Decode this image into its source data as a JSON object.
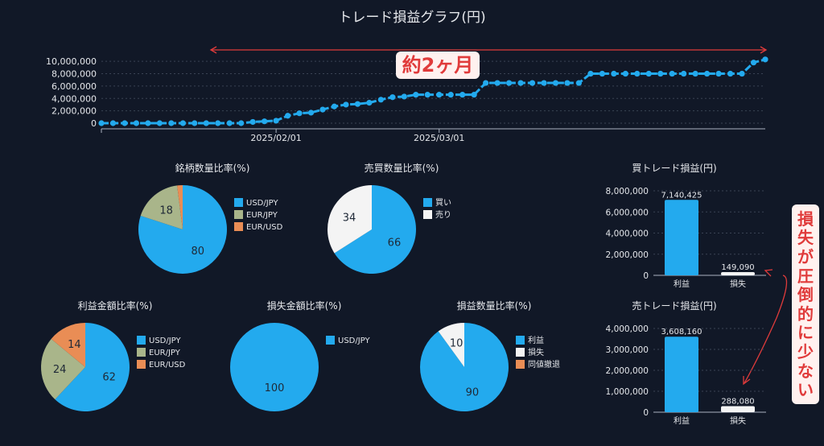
{
  "title": "トレード損益グラフ(円)",
  "colors": {
    "blue": "#23aaee",
    "olive": "#a9b58a",
    "orange": "#e98d55",
    "white": "#f4f4f4",
    "red": "#e03b3b",
    "grid": "#3a4354"
  },
  "annotations": {
    "period_label": "約2ヶ月",
    "loss_note_chars": [
      "損",
      "失",
      "が",
      "圧",
      "倒",
      "的",
      "に",
      "少",
      "な",
      "い"
    ]
  },
  "chart_data": [
    {
      "id": "line",
      "type": "line",
      "title": "トレード損益グラフ(円)",
      "y_ticks": [
        "10,000,000",
        "8,000,000",
        "6,000,000",
        "4,000,000",
        "2,000,000",
        "0"
      ],
      "y_tick_values": [
        10000000,
        8000000,
        6000000,
        4000000,
        2000000,
        0
      ],
      "x_ticks": [
        "2025/02/01",
        "2025/03/01"
      ],
      "x_tick_index": [
        15,
        29
      ],
      "ylim": [
        0,
        10800000
      ],
      "values": [
        0,
        0,
        0,
        0,
        0,
        0,
        0,
        0,
        0,
        0,
        0,
        0,
        0,
        200000,
        300000,
        400000,
        1200000,
        1600000,
        1700000,
        2200000,
        2700000,
        3000000,
        3100000,
        3300000,
        3800000,
        4200000,
        4300000,
        4600000,
        4600000,
        4600000,
        4600000,
        4600000,
        4600000,
        6500000,
        6500000,
        6500000,
        6500000,
        6500000,
        6500000,
        6500000,
        6500000,
        6500000,
        8000000,
        8000000,
        8000000,
        8000000,
        8000000,
        8000000,
        8000000,
        8000000,
        8000000,
        8000000,
        8000000,
        8000000,
        8000000,
        8000000,
        9800000,
        10300000
      ]
    },
    {
      "id": "pie-brand",
      "type": "pie",
      "title": "銘柄数量比率(%)",
      "labels": [
        "USD/JPY",
        "EUR/JPY",
        "EUR/USD"
      ],
      "values": [
        80,
        18,
        2
      ],
      "data_labels": [
        "80",
        "18",
        ""
      ],
      "colors": [
        "#23aaee",
        "#a9b58a",
        "#e98d55"
      ]
    },
    {
      "id": "pie-side",
      "type": "pie",
      "title": "売買数量比率(%)",
      "labels": [
        "買い",
        "売り"
      ],
      "values": [
        66,
        34
      ],
      "data_labels": [
        "66",
        "34"
      ],
      "colors": [
        "#23aaee",
        "#f4f4f4"
      ]
    },
    {
      "id": "pie-profit",
      "type": "pie",
      "title": "利益金額比率(%)",
      "labels": [
        "USD/JPY",
        "EUR/JPY",
        "EUR/USD"
      ],
      "values": [
        62,
        24,
        14
      ],
      "data_labels": [
        "62",
        "24",
        "14"
      ],
      "colors": [
        "#23aaee",
        "#a9b58a",
        "#e98d55"
      ]
    },
    {
      "id": "pie-loss",
      "type": "pie",
      "title": "損失金額比率(%)",
      "labels": [
        "USD/JPY"
      ],
      "values": [
        100
      ],
      "data_labels": [
        "100"
      ],
      "colors": [
        "#23aaee"
      ]
    },
    {
      "id": "pie-count",
      "type": "pie",
      "title": "損益数量比率(%)",
      "labels": [
        "利益",
        "損失",
        "同値撤退"
      ],
      "values": [
        90,
        10,
        0
      ],
      "data_labels": [
        "90",
        "10",
        ""
      ],
      "colors": [
        "#23aaee",
        "#f4f4f4",
        "#e98d55"
      ]
    },
    {
      "id": "bar-buy",
      "type": "bar",
      "title": "買トレード損益(円)",
      "categories": [
        "利益",
        "損失"
      ],
      "values": [
        7140425,
        149090
      ],
      "data_labels": [
        "7,140,425",
        "149,090"
      ],
      "y_ticks": [
        "8,000,000",
        "6,000,000",
        "4,000,000",
        "2,000,000",
        "0"
      ],
      "y_tick_values": [
        8000000,
        6000000,
        4000000,
        2000000,
        0
      ],
      "ylim": [
        0,
        8000000
      ],
      "colors": [
        "#23aaee",
        "#f4f4f4"
      ]
    },
    {
      "id": "bar-sell",
      "type": "bar",
      "title": "売トレード損益(円)",
      "categories": [
        "利益",
        "損失"
      ],
      "values": [
        3608160,
        288080
      ],
      "data_labels": [
        "3,608,160",
        "288,080"
      ],
      "y_ticks": [
        "4,000,000",
        "3,000,000",
        "2,000,000",
        "1,000,000",
        "0"
      ],
      "y_tick_values": [
        4000000,
        3000000,
        2000000,
        1000000,
        0
      ],
      "ylim": [
        0,
        4000000
      ],
      "colors": [
        "#23aaee",
        "#f4f4f4"
      ]
    }
  ]
}
